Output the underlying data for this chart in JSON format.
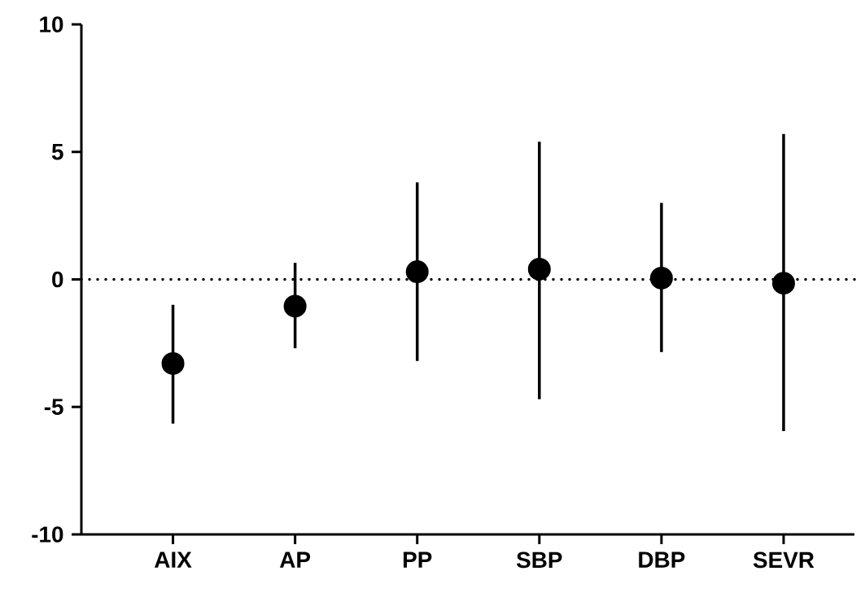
{
  "chart_data": {
    "type": "scatter",
    "categories": [
      "AIX",
      "AP",
      "PP",
      "SBP",
      "DBP",
      "SEVR"
    ],
    "values": [
      -3.3,
      -1.05,
      0.3,
      0.4,
      0.05,
      -0.15
    ],
    "errors": [
      [
        -5.65,
        -1.0
      ],
      [
        -2.7,
        0.65
      ],
      [
        -3.2,
        3.8
      ],
      [
        -4.7,
        5.4
      ],
      [
        -2.85,
        3.0
      ],
      [
        -5.95,
        5.7
      ]
    ],
    "color": "#000000",
    "marker": "circle",
    "ylim": [
      -10,
      10
    ],
    "yticks": [
      -10,
      -5,
      0,
      5,
      10
    ],
    "ref_lines": [
      {
        "axis": "y",
        "value": 0,
        "line_style": "dotted"
      }
    ]
  }
}
